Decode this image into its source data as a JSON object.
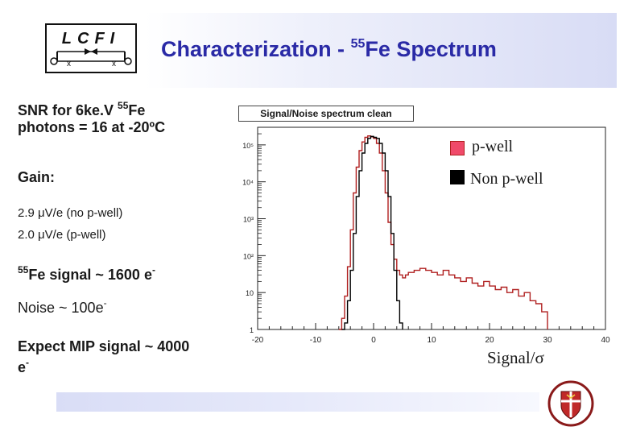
{
  "slide": {
    "title_main": "Characterization - ",
    "title_sup": "55",
    "title_end": "Fe Spectrum",
    "logo_text": "LCFI"
  },
  "notes": {
    "snr_line1_pre": "SNR for 6ke.V ",
    "snr_line1_sup": "55",
    "snr_line1_post": "Fe",
    "snr_line2": "photons = 16 at -20ºC",
    "gain_label": "Gain:",
    "gain_no_pwell": "2.9 μV/e (no p-well)",
    "gain_pwell": "2.0 μV/e (p-well)",
    "fe_sup": "55",
    "fe_text": "Fe signal ~ 1600 e",
    "fe_sup_minus": "-",
    "noise_text": "Noise ~ 100e",
    "noise_sup": "-",
    "mip_line1": "Expect MIP signal ~ 4000",
    "mip_line2": "e",
    "mip_sup": "-"
  },
  "chart_data": {
    "type": "line",
    "title": "Signal/Noise spectrum clean",
    "xlabel": "Signal/σ",
    "ylabel": "",
    "xlim": [
      -20,
      40
    ],
    "ylim": [
      1,
      300000
    ],
    "yscale": "log",
    "x_ticks": [
      -20,
      -10,
      0,
      10,
      20,
      30,
      40
    ],
    "y_ticks": [
      {
        "value": 1,
        "label": "1"
      },
      {
        "value": 10,
        "label": "10"
      },
      {
        "value": 100,
        "label": "10²"
      },
      {
        "value": 1000,
        "label": "10³"
      },
      {
        "value": 10000,
        "label": "10⁴"
      },
      {
        "value": 100000,
        "label": "10⁵"
      }
    ],
    "legend_position": "top-right",
    "series": [
      {
        "name": "Non p-well",
        "color": "#000000",
        "x": [
          -5.5,
          -5,
          -4.5,
          -4,
          -3.5,
          -3,
          -2.5,
          -2,
          -1.5,
          -1,
          -0.5,
          0,
          0.5,
          1,
          1.5,
          2,
          2.5,
          3,
          3.5,
          4,
          4.5,
          5
        ],
        "y": [
          1,
          1.5,
          6,
          40,
          400,
          4000,
          20000,
          60000,
          110000,
          150000,
          170000,
          160000,
          150000,
          110000,
          60000,
          20000,
          4000,
          400,
          40,
          6,
          1.5,
          1
        ]
      },
      {
        "name": "p-well",
        "color": "#b02020",
        "x": [
          -6,
          -5.5,
          -5,
          -4.5,
          -4,
          -3.5,
          -3,
          -2.5,
          -2,
          -1.5,
          -1,
          -0.5,
          0,
          0.5,
          1,
          1.5,
          2,
          2.5,
          3,
          3.5,
          4,
          4.5,
          5,
          5.5,
          6,
          7,
          8,
          9,
          10,
          11,
          12,
          13,
          14,
          15,
          16,
          17,
          18,
          19,
          20,
          21,
          22,
          23,
          24,
          25,
          26,
          27,
          28,
          29,
          30
        ],
        "y": [
          1,
          2,
          8,
          50,
          500,
          5000,
          25000,
          70000,
          120000,
          160000,
          175000,
          165000,
          150000,
          110000,
          60000,
          20000,
          5000,
          800,
          200,
          80,
          40,
          30,
          25,
          30,
          35,
          40,
          45,
          40,
          35,
          30,
          40,
          30,
          25,
          20,
          25,
          18,
          15,
          20,
          15,
          12,
          14,
          10,
          12,
          8,
          10,
          6,
          5,
          3,
          1
        ]
      }
    ]
  }
}
